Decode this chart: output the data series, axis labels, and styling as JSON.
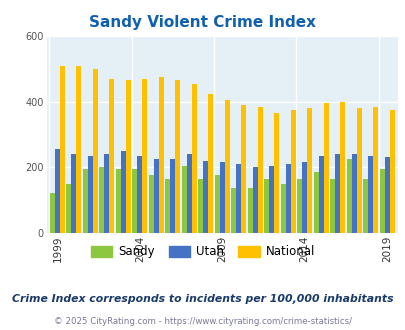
{
  "title": "Sandy Violent Crime Index",
  "years": [
    1999,
    2000,
    2001,
    2002,
    2003,
    2004,
    2005,
    2006,
    2007,
    2008,
    2009,
    2010,
    2011,
    2012,
    2013,
    2014,
    2015,
    2016,
    2017,
    2018,
    2019
  ],
  "sandy": [
    120,
    150,
    195,
    200,
    195,
    195,
    175,
    165,
    205,
    165,
    175,
    135,
    135,
    165,
    150,
    165,
    185,
    165,
    225,
    165,
    195
  ],
  "utah": [
    255,
    240,
    235,
    240,
    250,
    235,
    225,
    225,
    240,
    220,
    215,
    210,
    200,
    205,
    210,
    215,
    235,
    240,
    240,
    235,
    230
  ],
  "national": [
    510,
    510,
    500,
    470,
    465,
    470,
    475,
    465,
    455,
    425,
    405,
    390,
    385,
    365,
    375,
    380,
    395,
    400,
    380,
    385,
    375
  ],
  "colors": {
    "sandy": "#8dc63f",
    "utah": "#4472c4",
    "national": "#ffc000"
  },
  "bg_color": "#e4f0f5",
  "ylim": [
    0,
    600
  ],
  "yticks": [
    0,
    200,
    400,
    600
  ],
  "xtick_years": [
    1999,
    2004,
    2009,
    2014,
    2019
  ],
  "legend_labels": [
    "Sandy",
    "Utah",
    "National"
  ],
  "note": "Crime Index corresponds to incidents per 100,000 inhabitants",
  "copyright": "© 2025 CityRating.com - https://www.cityrating.com/crime-statistics/",
  "title_color": "#1060b0",
  "note_color": "#1a3a6a",
  "copyright_color": "#7a7a9a"
}
